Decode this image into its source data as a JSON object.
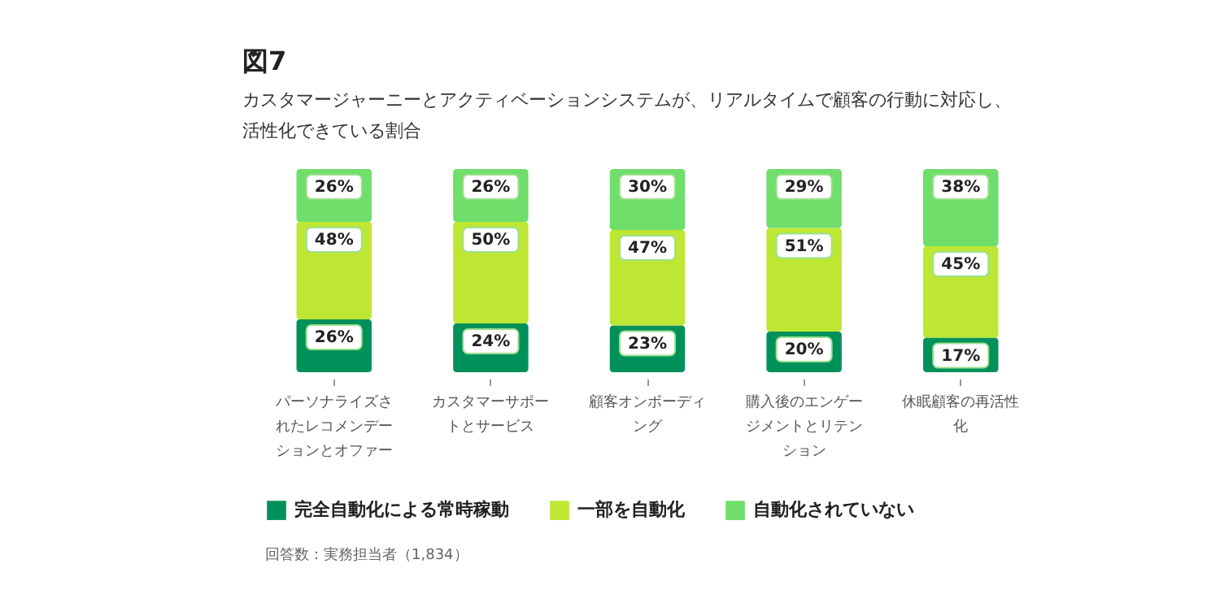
{
  "chart_data": {
    "type": "bar",
    "stacked": true,
    "title": "図7",
    "subtitle": "カスタマージャーニーとアクティベーションシステムが、リアルタイムで顧客の行動に対応し、活性化できている割合",
    "categories": [
      "パーソナライズされたレコメンデーションとオファー",
      "カスタマーサポートとサービス",
      "顧客オンボーディング",
      "購入後のエンゲージメントとリテンション",
      "休眠顧客の再活性化"
    ],
    "series": [
      {
        "name": "完全自動化による常時稼動",
        "color": "#00915a",
        "values": [
          26,
          24,
          23,
          20,
          17
        ],
        "value_labels": [
          "26%",
          "24%",
          "23%",
          "20%",
          "17%"
        ]
      },
      {
        "name": "一部を自動化",
        "color": "#bde733",
        "values": [
          48,
          50,
          47,
          51,
          45
        ],
        "value_labels": [
          "48%",
          "50%",
          "47%",
          "51%",
          "45%"
        ]
      },
      {
        "name": "自動化されていない",
        "color": "#70de6a",
        "values": [
          26,
          26,
          30,
          29,
          38
        ],
        "value_labels": [
          "26%",
          "26%",
          "30%",
          "29%",
          "38%"
        ]
      }
    ],
    "legend": "bottom left",
    "annotations": [
      "回答数：実務担当者（1,834）"
    ]
  }
}
